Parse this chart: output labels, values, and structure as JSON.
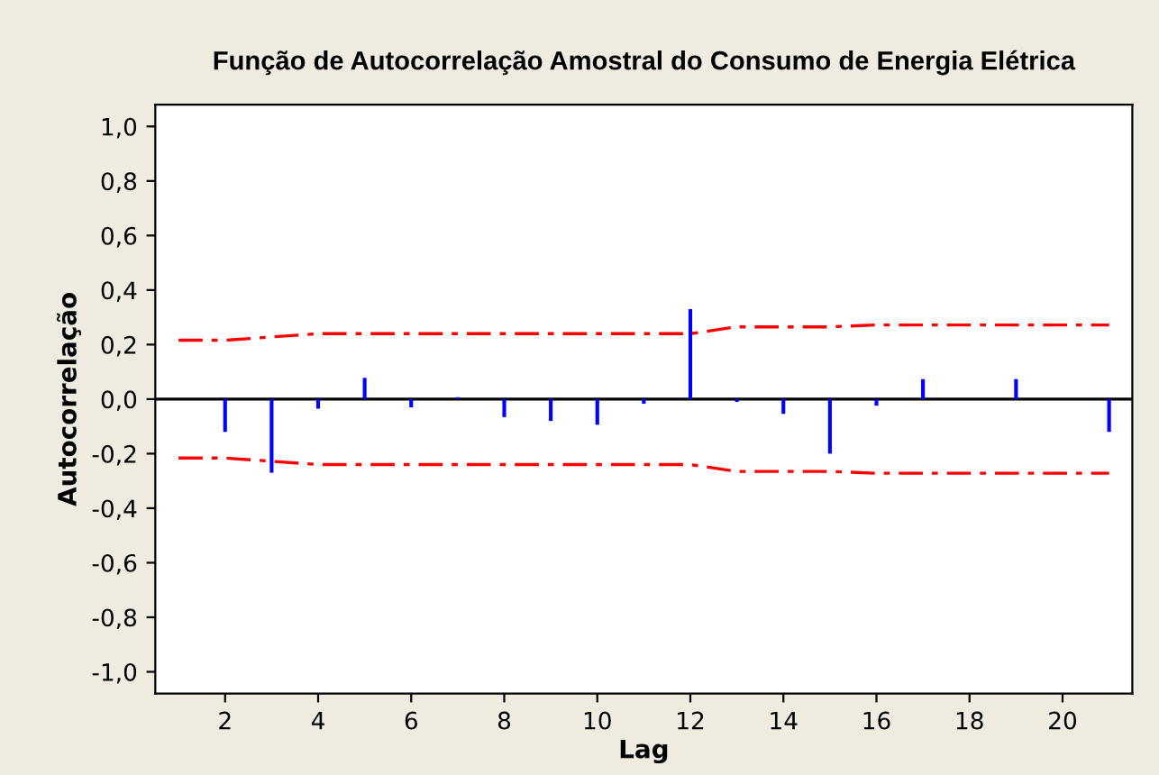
{
  "chart_data": {
    "type": "bar",
    "title": "Função de Autocorrelação Amostral do Consumo de Energia Elétrica",
    "xlabel": "Lag",
    "ylabel": "Autocorrelação",
    "xlim": [
      0.5,
      21.5
    ],
    "xticks": [
      2,
      4,
      6,
      8,
      10,
      12,
      14,
      16,
      18,
      20
    ],
    "ylim": [
      -1.08,
      1.08
    ],
    "yticks": [
      {
        "value": -1.0,
        "label": "-1,0"
      },
      {
        "value": -0.8,
        "label": "-0,8"
      },
      {
        "value": -0.6,
        "label": "-0,6"
      },
      {
        "value": -0.4,
        "label": "-0,4"
      },
      {
        "value": -0.2,
        "label": "-0,2"
      },
      {
        "value": 0.0,
        "label": "0,0"
      },
      {
        "value": 0.2,
        "label": "0,2"
      },
      {
        "value": 0.4,
        "label": "0,4"
      },
      {
        "value": 0.6,
        "label": "0,6"
      },
      {
        "value": 0.8,
        "label": "0,8"
      },
      {
        "value": 1.0,
        "label": "1,0"
      }
    ],
    "grid": false,
    "legend": false,
    "ref_lines": [
      {
        "axis": "y",
        "value": 0,
        "color": "#000000"
      }
    ],
    "series": [
      {
        "color": "#0000ff",
        "x": [
          1,
          2,
          3,
          4,
          5,
          6,
          7,
          8,
          9,
          10,
          11,
          12,
          13,
          14,
          15,
          16,
          17,
          18,
          19,
          20,
          21
        ],
        "values": [
          0.0,
          -0.12,
          -0.27,
          -0.035,
          0.078,
          -0.03,
          0.007,
          -0.066,
          -0.08,
          -0.094,
          -0.017,
          0.33,
          -0.01,
          -0.054,
          -0.2,
          -0.024,
          0.073,
          0.0,
          0.073,
          0.0,
          -0.12
        ]
      },
      {
        "type": "line",
        "color": "#ff0000",
        "line_style": "dashdot",
        "x": [
          1,
          2,
          3,
          4,
          5,
          6,
          7,
          8,
          9,
          10,
          11,
          12,
          13,
          14,
          15,
          16,
          17,
          18,
          19,
          20,
          21
        ],
        "values": [
          0.216,
          0.216,
          0.228,
          0.24,
          0.24,
          0.24,
          0.24,
          0.24,
          0.24,
          0.24,
          0.24,
          0.24,
          0.265,
          0.265,
          0.265,
          0.272,
          0.272,
          0.272,
          0.272,
          0.272,
          0.272
        ]
      },
      {
        "type": "line",
        "color": "#ff0000",
        "line_style": "dashdot",
        "x": [
          1,
          2,
          3,
          4,
          5,
          6,
          7,
          8,
          9,
          10,
          11,
          12,
          13,
          14,
          15,
          16,
          17,
          18,
          19,
          20,
          21
        ],
        "values": [
          -0.216,
          -0.216,
          -0.228,
          -0.24,
          -0.24,
          -0.24,
          -0.24,
          -0.24,
          -0.24,
          -0.24,
          -0.24,
          -0.24,
          -0.265,
          -0.265,
          -0.265,
          -0.272,
          -0.272,
          -0.272,
          -0.272,
          -0.272,
          -0.272
        ]
      }
    ]
  }
}
